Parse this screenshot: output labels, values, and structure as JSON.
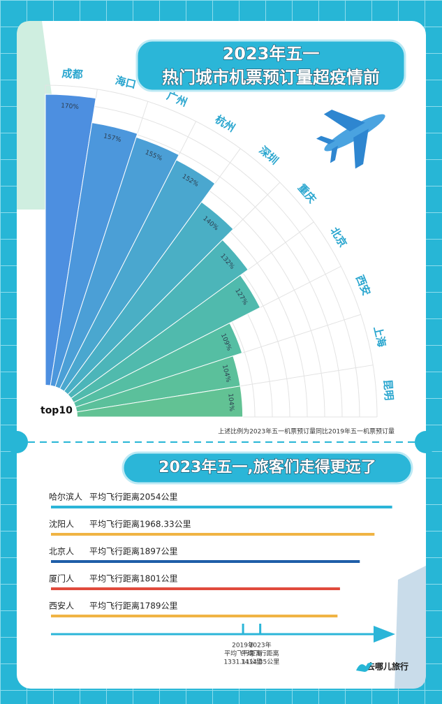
{
  "chart_data": [
    {
      "type": "polar_bar",
      "title_lines": [
        "2023年五一",
        "热门城市机票预订量超疫情前"
      ],
      "center_label": "top10",
      "categories": [
        "成都",
        "海口",
        "广州",
        "杭州",
        "深圳",
        "重庆",
        "北京",
        "西安",
        "上海",
        "昆明"
      ],
      "values": [
        170,
        157,
        155,
        152,
        140,
        132,
        127,
        109,
        104,
        104
      ],
      "value_labels": [
        "170%",
        "157%",
        "155%",
        "152%",
        "140%",
        "132%",
        "127%",
        "109%",
        "104%",
        "104%"
      ],
      "rlim": [
        0,
        170
      ],
      "colors": [
        "#4d8fe0",
        "#4c97dc",
        "#4b9fd6",
        "#4aa7cf",
        "#4aafc5",
        "#4cb5b9",
        "#50baad",
        "#55bea3",
        "#5bc09b",
        "#62c294"
      ],
      "label_color": "#2aa6cf",
      "note": "上述比例为2023年五一机票预订量同比2019年五一机票预订量"
    },
    {
      "type": "bar",
      "horizontal": true,
      "title": "2023年五一,旅客们走得更远了",
      "categories": [
        "哈尔滨人",
        "沈阳人",
        "北京人",
        "厦门人",
        "西安人"
      ],
      "values": [
        2054,
        1968.33,
        1897,
        1801,
        1789
      ],
      "value_labels": [
        "平均飞行距离2054公里",
        "平均飞行距离1968.33公里",
        "平均飞行距离1897公里",
        "平均飞行距离1801公里",
        "平均飞行距离1789公里"
      ],
      "colors": [
        "#2bb5d8",
        "#f0b444",
        "#1f5ea8",
        "#e04a3c",
        "#f0b444"
      ],
      "xlim": [
        400,
        2150
      ],
      "reference_lines": [
        {
          "value": 1331.11,
          "label_lines": [
            "2019年",
            "平均飞行距离",
            "1331.11公里"
          ]
        },
        {
          "value": 1414.35,
          "label_lines": [
            "2023年",
            "平均飞行距离",
            "1414.35公里"
          ]
        }
      ]
    }
  ],
  "brand": "去哪儿旅行"
}
